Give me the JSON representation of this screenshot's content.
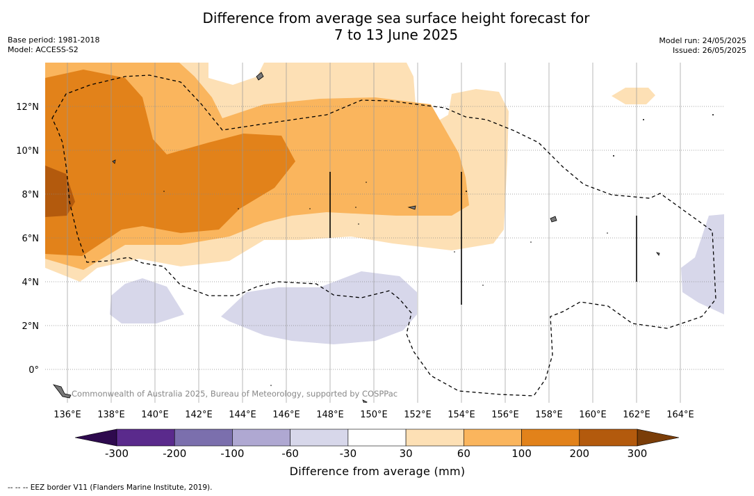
{
  "title_line1": "Difference from average sea surface height forecast for",
  "title_line2": "7 to 13 June 2025",
  "base_period": "Base period: 1981-2018",
  "model": "Model: ACCESS-S2",
  "model_run": "Model run: 24/05/2025",
  "issued": "Issued: 26/05/2025",
  "copyright": "Commonwealth of Australia 2025, Bureau of Meteorology, supported by COSPPac",
  "lat_labels": [
    "12°N",
    "10°N",
    "8°N",
    "6°N",
    "4°N",
    "2°N",
    "0°"
  ],
  "lon_labels": [
    "136°E",
    "138°E",
    "140°E",
    "142°E",
    "144°E",
    "146°E",
    "148°E",
    "150°E",
    "152°E",
    "154°E",
    "156°E",
    "158°E",
    "160°E",
    "162°E",
    "164°E"
  ],
  "colorbar": {
    "title": "Difference from average (mm)",
    "tick_labels": [
      "-300",
      "-200",
      "-100",
      "-60",
      "-30",
      "30",
      "60",
      "100",
      "200",
      "300"
    ],
    "colors": [
      "#5a2a8c",
      "#7b6fad",
      "#afa8d2",
      "#d7d7ea",
      "#ffffff",
      "#fde0b5",
      "#fab55d",
      "#e2821a",
      "#b35a0d"
    ],
    "low_extend_color": "#2e0a4e",
    "high_extend_color": "#7a3d08"
  },
  "footer": "--  --  -- EEZ border V11 (Flanders Marine Institute, 2019)."
}
